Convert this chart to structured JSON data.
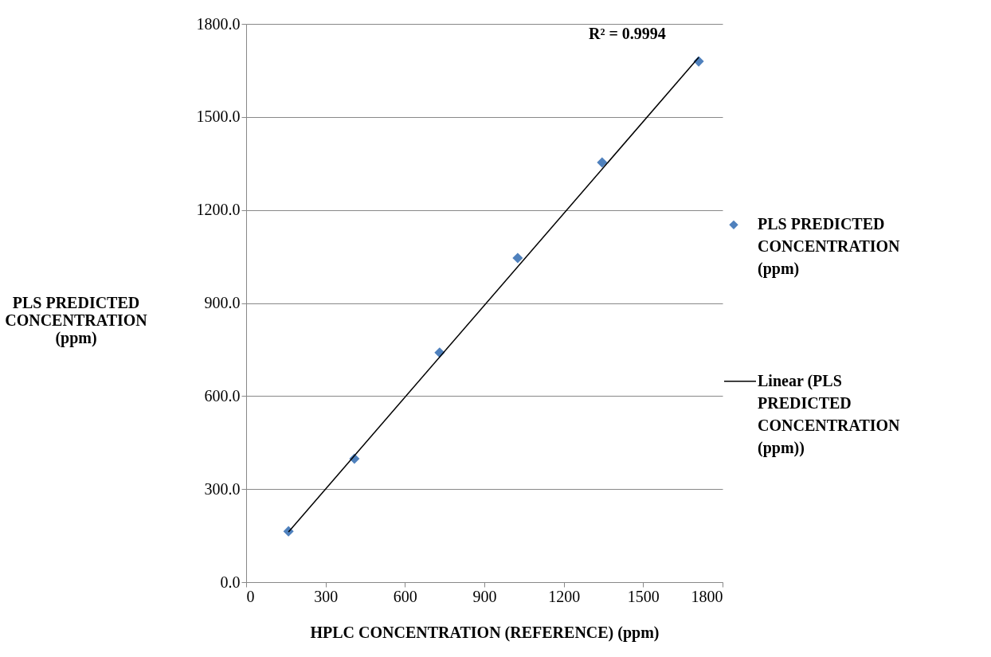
{
  "chart_data": {
    "type": "scatter",
    "xlabel": "HPLC CONCENTRATION (REFERENCE) (ppm)",
    "ylabel": "PLS PREDICTED CONCENTRATION (ppm)",
    "xlim": [
      0,
      1800
    ],
    "xticks": [
      0,
      300,
      600,
      900,
      1200,
      1500,
      1800
    ],
    "ylim": [
      0,
      1800
    ],
    "yticks": [
      {
        "value": 0,
        "label": "0.0"
      },
      {
        "value": 300,
        "label": "300.0"
      },
      {
        "value": 600,
        "label": "600.0"
      },
      {
        "value": 900,
        "label": "900.0"
      },
      {
        "value": 1200,
        "label": "1200.0"
      },
      {
        "value": 1500,
        "label": "1500.0"
      },
      {
        "value": 1800,
        "label": "1800.0"
      }
    ],
    "grid": "y",
    "legend": "right",
    "x": [
      160,
      409,
      731,
      1026,
      1345,
      1710
    ],
    "series": [
      {
        "name": "PLS PREDICTED CONCENTRATION (ppm)",
        "marker": "diamond",
        "color": "#4f81bd",
        "values": [
          164,
          398,
          740,
          1045,
          1353,
          1679
        ]
      },
      {
        "name": "Linear (PLS PREDICTED CONCENTRATION (ppm))",
        "type": "line",
        "color": "#000000",
        "line_style": "solid",
        "x": [
          160,
          1710
        ],
        "values": [
          162,
          1692
        ]
      }
    ],
    "annotations": [
      "R² = 0.9994"
    ]
  }
}
